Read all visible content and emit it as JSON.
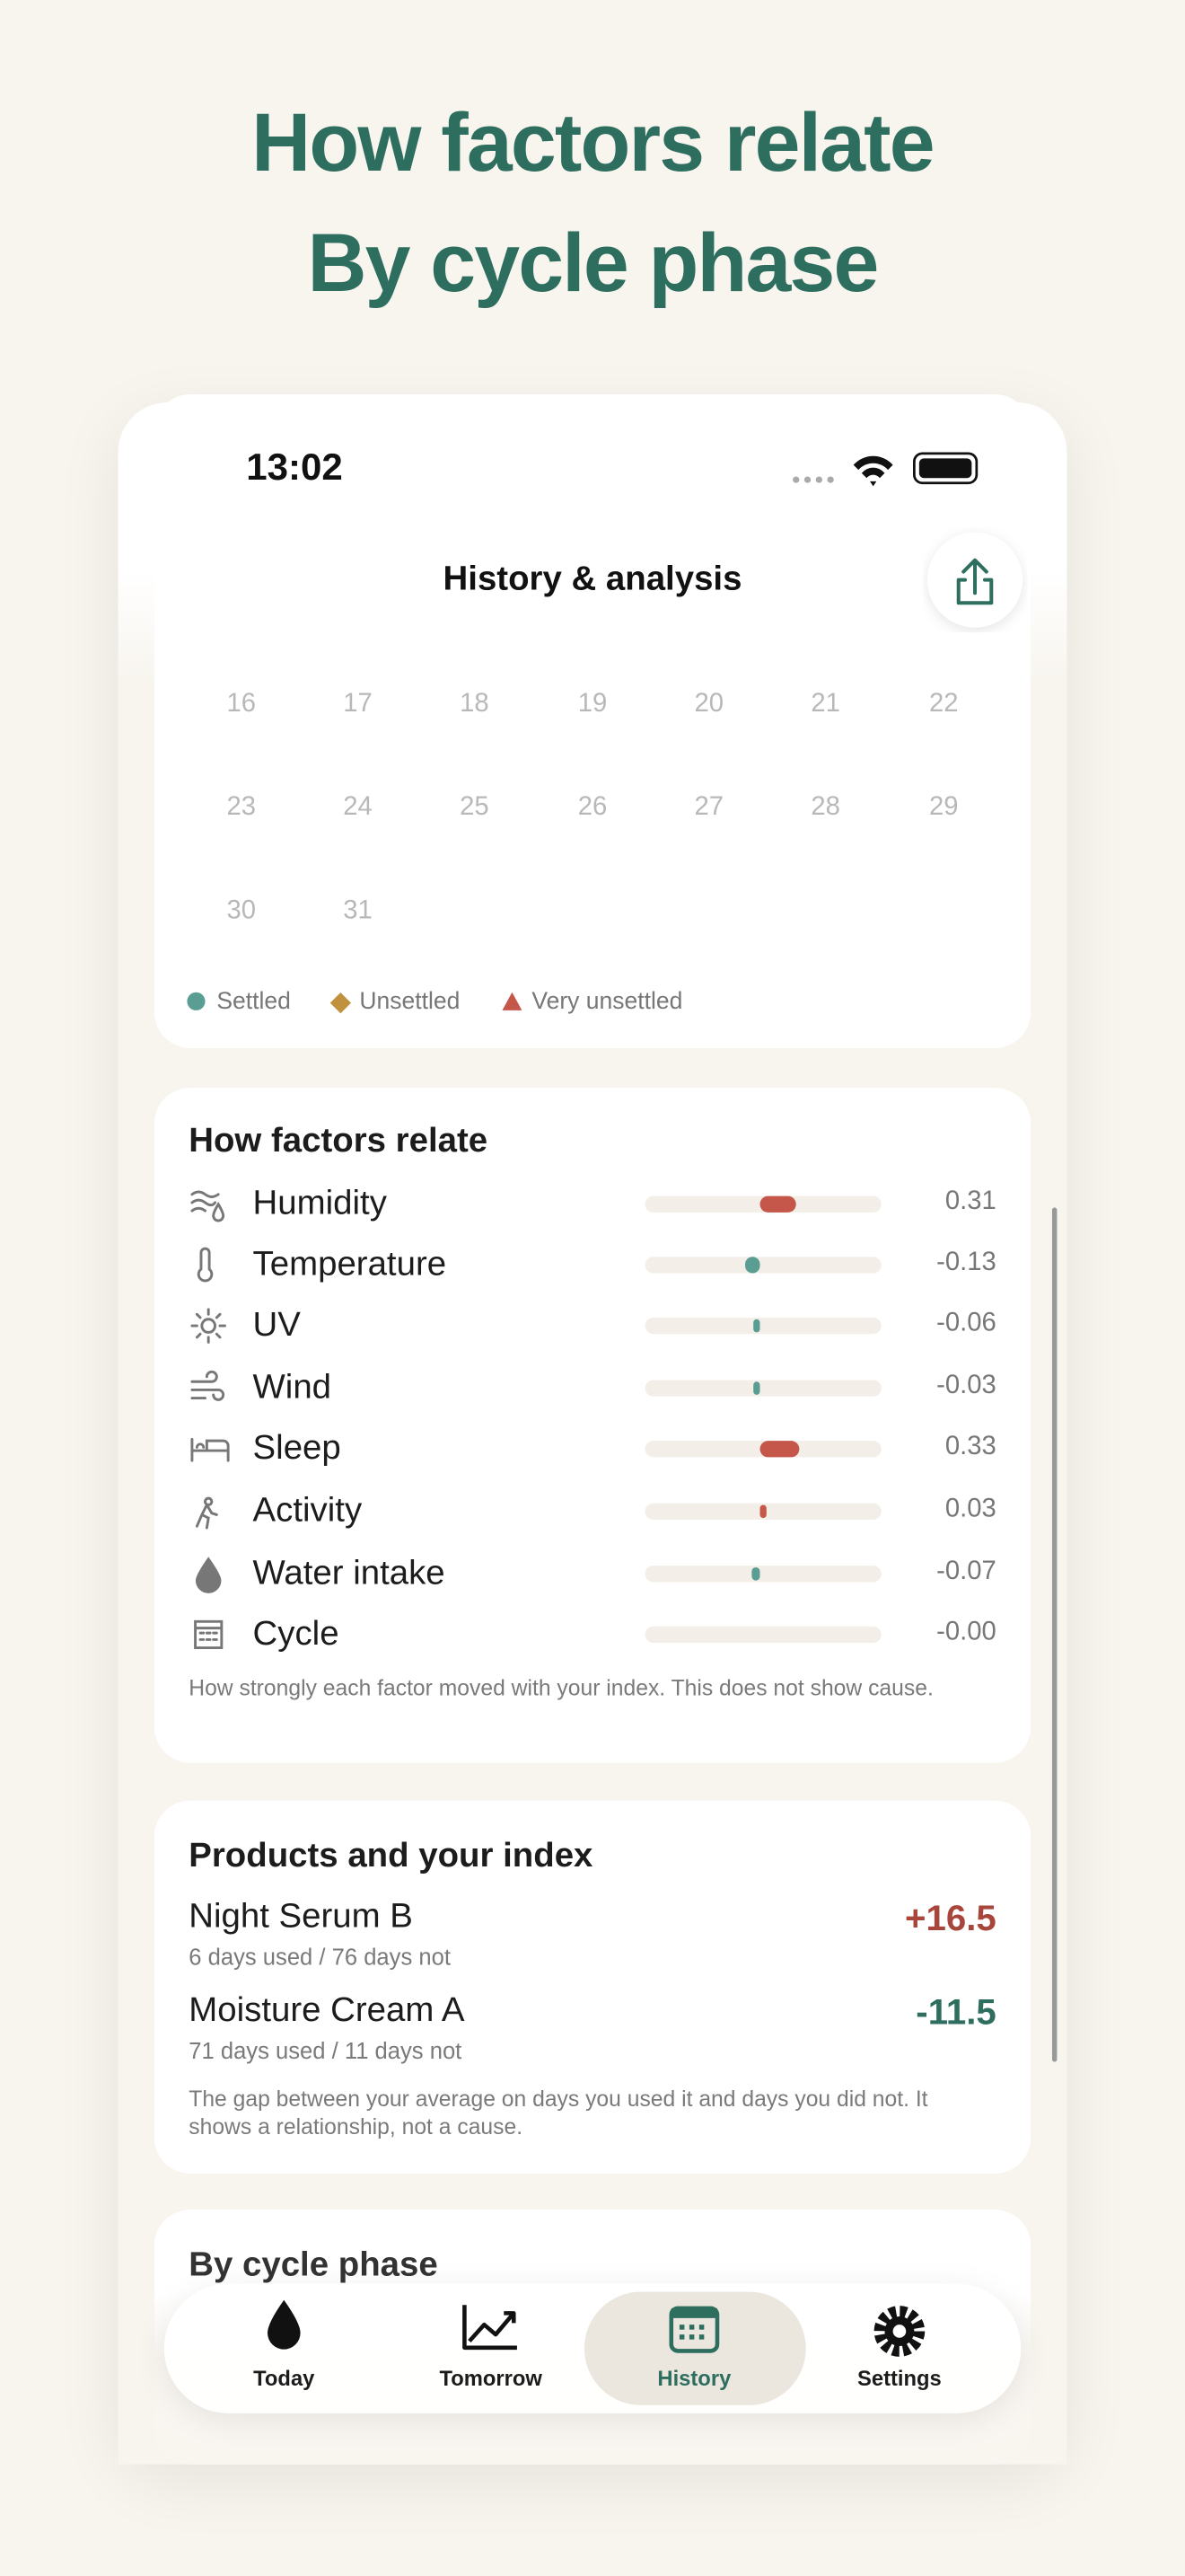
{
  "headline": [
    "How factors relate",
    "By cycle phase"
  ],
  "status_bar": {
    "time": "13:02"
  },
  "nav": {
    "title": "History & analysis"
  },
  "calendar": {
    "rows": [
      [
        16,
        17,
        18,
        19,
        20,
        21,
        22
      ],
      [
        23,
        24,
        25,
        26,
        27,
        28,
        29
      ],
      [
        30,
        31
      ]
    ],
    "legend": [
      "Settled",
      "Unsettled",
      "Very unsettled"
    ]
  },
  "factors": {
    "title": "How factors relate",
    "items": [
      {
        "name": "Humidity",
        "value": "0.31"
      },
      {
        "name": "Temperature",
        "value": "-0.13"
      },
      {
        "name": "UV",
        "value": "-0.06"
      },
      {
        "name": "Wind",
        "value": "-0.03"
      },
      {
        "name": "Sleep",
        "value": "0.33"
      },
      {
        "name": "Activity",
        "value": "0.03"
      },
      {
        "name": "Water intake",
        "value": "-0.07"
      },
      {
        "name": "Cycle",
        "value": "-0.00"
      }
    ],
    "note": "How strongly each factor moved with your index. This does not show cause."
  },
  "products": {
    "title": "Products and your index",
    "items": [
      {
        "name": "Night Serum B",
        "detail": "6 days used / 76 days not",
        "value": "+16.5"
      },
      {
        "name": "Moisture Cream A",
        "detail": "71 days used / 11 days not",
        "value": "-11.5"
      }
    ],
    "note": "The gap between your average on days you used it and days you did not. It shows a relationship, not a cause."
  },
  "cycle_phase": {
    "title": "By cycle phase"
  },
  "tabs": [
    "Today",
    "Tomorrow",
    "History",
    "Settings"
  ]
}
